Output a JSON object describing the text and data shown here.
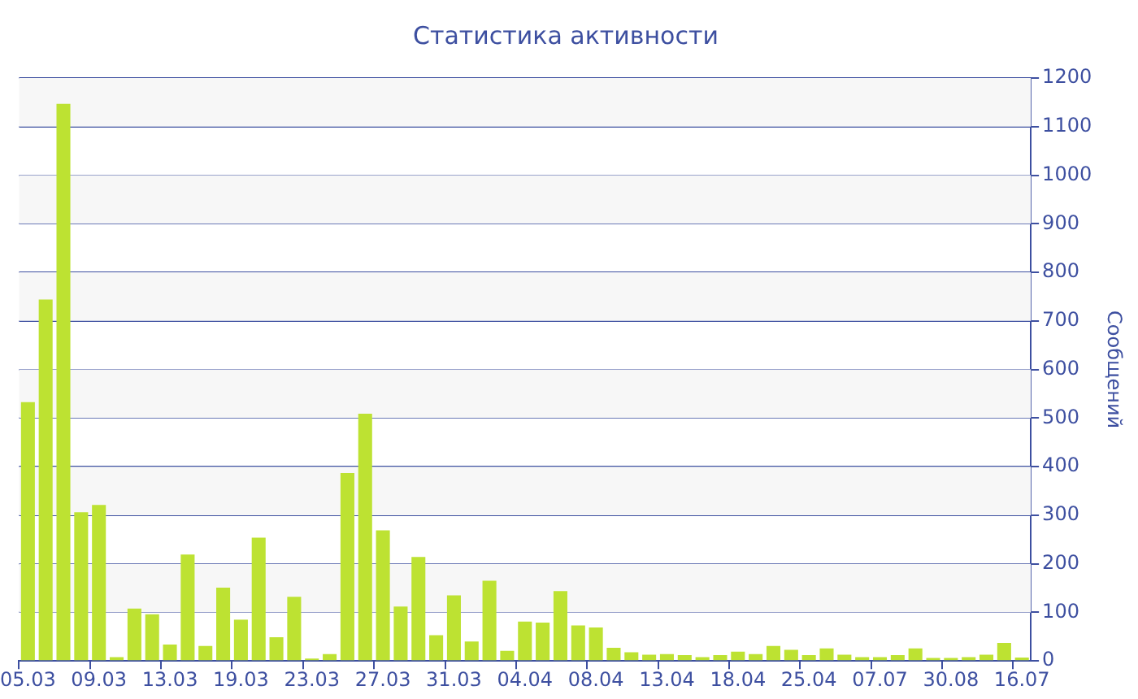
{
  "chart_data": {
    "type": "bar",
    "title": "Статистика активности",
    "ylabel": "Сообщений",
    "categories": [
      "05.03",
      null,
      null,
      null,
      "09.03",
      null,
      null,
      null,
      "13.03",
      null,
      null,
      null,
      "19.03",
      null,
      null,
      null,
      "23.03",
      null,
      null,
      null,
      "27.03",
      null,
      null,
      null,
      "31.03",
      null,
      null,
      null,
      "04.04",
      null,
      null,
      null,
      "08.04",
      null,
      null,
      null,
      "13.04",
      null,
      null,
      null,
      "18.04",
      null,
      null,
      null,
      "25.04",
      null,
      null,
      null,
      "07.07",
      null,
      null,
      null,
      "30.08",
      null,
      null,
      null,
      "16.07"
    ],
    "values": [
      533,
      744,
      1147,
      306,
      321,
      8,
      108,
      96,
      34,
      219,
      31,
      151,
      85,
      254,
      49,
      132,
      5,
      14,
      387,
      509,
      269,
      112,
      214,
      53,
      135,
      40,
      165,
      21,
      81,
      79,
      144,
      73,
      69,
      27,
      18,
      13,
      14,
      12,
      8,
      12,
      19,
      14,
      31,
      23,
      12,
      26,
      13,
      8,
      8,
      12,
      26,
      6,
      6,
      8,
      13,
      37,
      7
    ],
    "color": "#bde232",
    "ylim": [
      0,
      1200
    ],
    "yticks": [
      0,
      100,
      200,
      300,
      400,
      500,
      600,
      700,
      800,
      900,
      1000,
      1100,
      1200
    ],
    "grid": "y"
  }
}
